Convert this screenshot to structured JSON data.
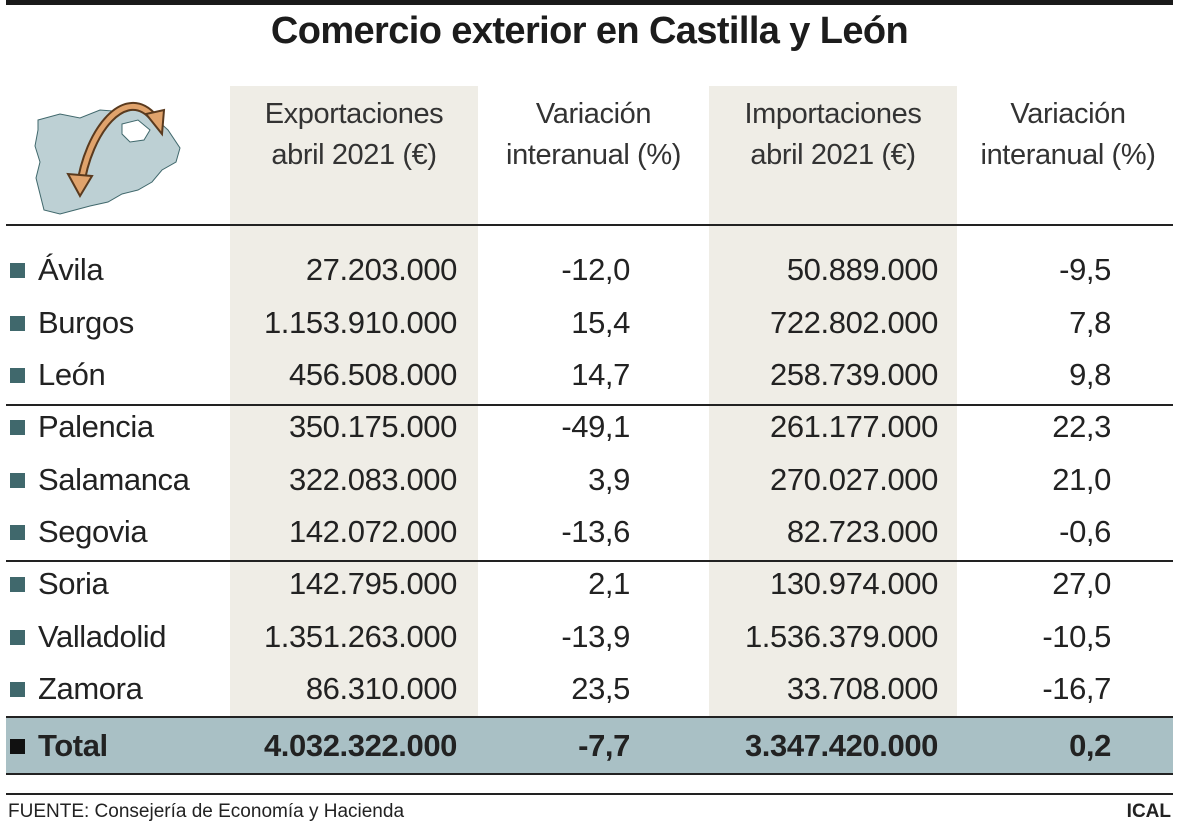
{
  "title": "Comercio exterior en Castilla y León",
  "columns": [
    {
      "line1": "Exportaciones",
      "line2": "abril 2021 (€)"
    },
    {
      "line1": "Variación",
      "line2": "interanual (%)"
    },
    {
      "line1": "Importaciones",
      "line2": "abril 2021 (€)"
    },
    {
      "line1": "Variación",
      "line2": "interanual (%)"
    }
  ],
  "rows": [
    {
      "name": "Ávila",
      "exportaciones": "27.203.000",
      "var_export": "-12,0",
      "importaciones": "50.889.000",
      "var_import": "-9,5"
    },
    {
      "name": "Burgos",
      "exportaciones": "1.153.910.000",
      "var_export": "15,4",
      "importaciones": "722.802.000",
      "var_import": "7,8"
    },
    {
      "name": "León",
      "exportaciones": "456.508.000",
      "var_export": "14,7",
      "importaciones": "258.739.000",
      "var_import": "9,8"
    },
    {
      "name": "Palencia",
      "exportaciones": "350.175.000",
      "var_export": "-49,1",
      "importaciones": "261.177.000",
      "var_import": "22,3"
    },
    {
      "name": "Salamanca",
      "exportaciones": "322.083.000",
      "var_export": "3,9",
      "importaciones": "270.027.000",
      "var_import": "21,0"
    },
    {
      "name": "Segovia",
      "exportaciones": "142.072.000",
      "var_export": "-13,6",
      "importaciones": "82.723.000",
      "var_import": "-0,6"
    },
    {
      "name": "Soria",
      "exportaciones": "142.795.000",
      "var_export": "2,1",
      "importaciones": "130.974.000",
      "var_import": "27,0"
    },
    {
      "name": "Valladolid",
      "exportaciones": "1.351.263.000",
      "var_export": "-13,9",
      "importaciones": "1.536.379.000",
      "var_import": "-10,5"
    },
    {
      "name": "Zamora",
      "exportaciones": "86.310.000",
      "var_export": "23,5",
      "importaciones": "33.708.000",
      "var_import": "-16,7"
    }
  ],
  "total": {
    "name": "Total",
    "exportaciones": "4.032.322.000",
    "var_export": "-7,7",
    "importaciones": "3.347.420.000",
    "var_import": "0,2"
  },
  "source": "FUENTE: Consejería de Economía y Hacienda",
  "brand": "ICAL",
  "colors": {
    "column_shade": "#efede6",
    "total_band": "#a9c0c5",
    "bullet": "#40686c",
    "map_fill": "#bdd0d4",
    "arrow": "#e0a36c"
  },
  "chart_data": {
    "type": "table",
    "title": "Comercio exterior en Castilla y León",
    "columns": [
      "",
      "Exportaciones abril 2021 (€)",
      "Variación interanual (%)",
      "Importaciones abril 2021 (€)",
      "Variación interanual (%)"
    ],
    "rows": [
      [
        "Ávila",
        27203000,
        -12.0,
        50889000,
        -9.5
      ],
      [
        "Burgos",
        1153910000,
        15.4,
        722802000,
        7.8
      ],
      [
        "León",
        456508000,
        14.7,
        258739000,
        9.8
      ],
      [
        "Palencia",
        350175000,
        -49.1,
        261177000,
        22.3
      ],
      [
        "Salamanca",
        322083000,
        3.9,
        270027000,
        21.0
      ],
      [
        "Segovia",
        142072000,
        -13.6,
        82723000,
        -0.6
      ],
      [
        "Soria",
        142795000,
        2.1,
        130974000,
        27.0
      ],
      [
        "Valladolid",
        1351263000,
        -13.9,
        1536379000,
        -10.5
      ],
      [
        "Zamora",
        86310000,
        23.5,
        33708000,
        -16.7
      ],
      [
        "Total",
        4032322000,
        -7.7,
        3347420000,
        0.2
      ]
    ]
  }
}
